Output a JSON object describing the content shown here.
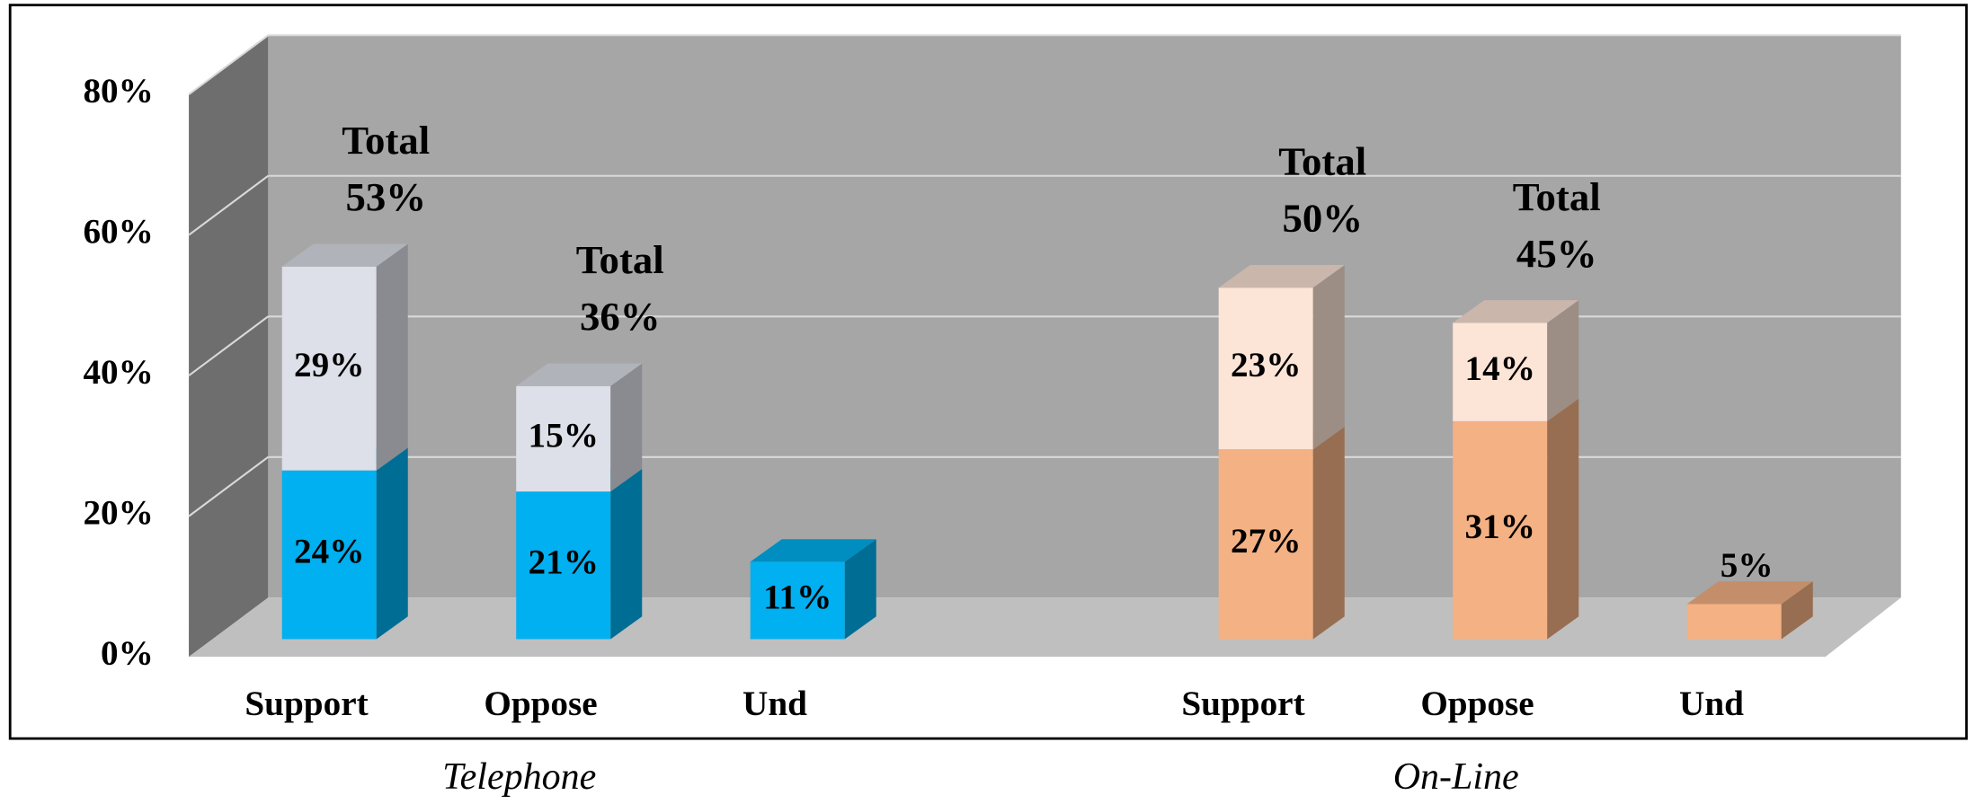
{
  "chart_data": {
    "type": "bar3d_stacked",
    "ylim": [
      0,
      80
    ],
    "yticks": [
      {
        "value": 0,
        "label": "0%"
      },
      {
        "value": 20,
        "label": "20%"
      },
      {
        "value": 40,
        "label": "40%"
      },
      {
        "value": 60,
        "label": "60%"
      },
      {
        "value": 80,
        "label": "80%"
      }
    ],
    "grid": true,
    "total_title": "Total",
    "groups": [
      {
        "name": "Telephone",
        "categories": [
          "Support",
          "Oppose",
          "Und"
        ],
        "series": [
          {
            "color": "#00b0f0",
            "values": [
              24,
              21,
              11
            ],
            "value_labels": [
              "24%",
              "21%",
              "11%"
            ]
          },
          {
            "color": "#dde0e8",
            "values": [
              29,
              15,
              null
            ],
            "value_labels": [
              "29%",
              "15%",
              null
            ]
          }
        ],
        "totals": [
          53,
          36,
          null
        ],
        "total_labels": [
          "53%",
          "36%",
          null
        ]
      },
      {
        "name": "On-Line",
        "categories": [
          "Support",
          "Oppose",
          "Und"
        ],
        "series": [
          {
            "color": "#f4b183",
            "values": [
              27,
              31,
              5
            ],
            "value_labels": [
              "27%",
              "31%",
              "5%"
            ]
          },
          {
            "color": "#fce4d6",
            "values": [
              23,
              14,
              null
            ],
            "value_labels": [
              "23%",
              "14%",
              null
            ]
          }
        ],
        "totals": [
          50,
          45,
          null
        ],
        "total_labels": [
          "50%",
          "45%",
          null
        ]
      }
    ]
  }
}
